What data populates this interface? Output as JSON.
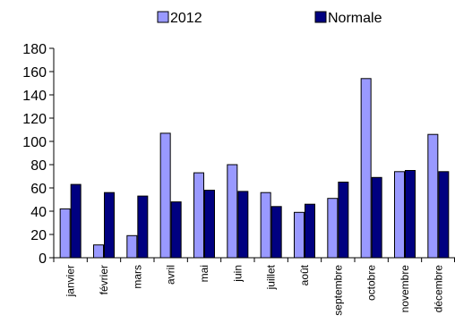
{
  "chart_data": {
    "type": "bar",
    "categories": [
      "janvier",
      "février",
      "mars",
      "avril",
      "mai",
      "juin",
      "juillet",
      "août",
      "septembre",
      "octobre",
      "novembre",
      "décembre"
    ],
    "series": [
      {
        "name": "2012",
        "color": "#9999ff",
        "values": [
          42,
          11,
          19,
          107,
          73,
          80,
          56,
          39,
          51,
          154,
          74,
          106
        ]
      },
      {
        "name": "Normale",
        "color": "#000080",
        "values": [
          63,
          56,
          53,
          48,
          58,
          57,
          44,
          46,
          65,
          69,
          75,
          74
        ]
      }
    ],
    "ylim": [
      0,
      180
    ],
    "yticks": [
      0,
      20,
      40,
      60,
      80,
      100,
      120,
      140,
      160,
      180
    ],
    "legend_position": "top",
    "grid": false
  }
}
